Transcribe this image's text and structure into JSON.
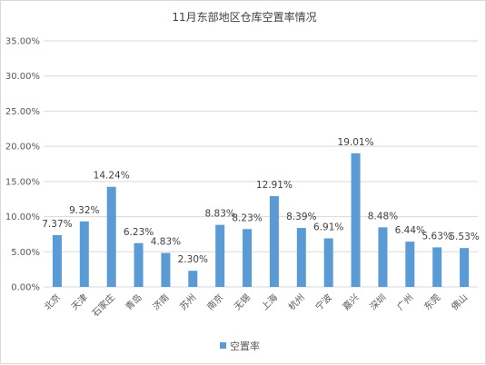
{
  "chart_data": {
    "type": "bar",
    "title": "11月东部地区仓库空置率情况",
    "categories": [
      "北京",
      "天津",
      "石家庄",
      "青岛",
      "济南",
      "苏州",
      "南京",
      "无锡",
      "上海",
      "杭州",
      "宁波",
      "嘉兴",
      "深圳",
      "广州",
      "东莞",
      "佛山"
    ],
    "series": [
      {
        "name": "空置率",
        "values": [
          7.37,
          9.32,
          14.24,
          6.23,
          4.83,
          2.3,
          8.83,
          8.23,
          12.91,
          8.39,
          6.91,
          19.01,
          8.48,
          6.44,
          5.63,
          5.53
        ],
        "labels": [
          "7.37%",
          "9.32%",
          "14.24%",
          "6.23%",
          "4.83%",
          "2.30%",
          "8.83%",
          "8.23%",
          "12.91%",
          "8.39%",
          "6.91%",
          "19.01%",
          "8.48%",
          "6.44%",
          "5.63%",
          "5.53%"
        ]
      }
    ],
    "y_ticks": [
      "0.00%",
      "5.00%",
      "10.00%",
      "15.00%",
      "20.00%",
      "25.00%",
      "30.00%",
      "35.00%"
    ],
    "ylim": [
      0,
      35
    ],
    "grid": true,
    "legend": "bottom",
    "colors": {
      "bar": "#5b9bd5",
      "grid": "#d9d9d9",
      "text": "#404040",
      "axis_text": "#595959"
    }
  }
}
